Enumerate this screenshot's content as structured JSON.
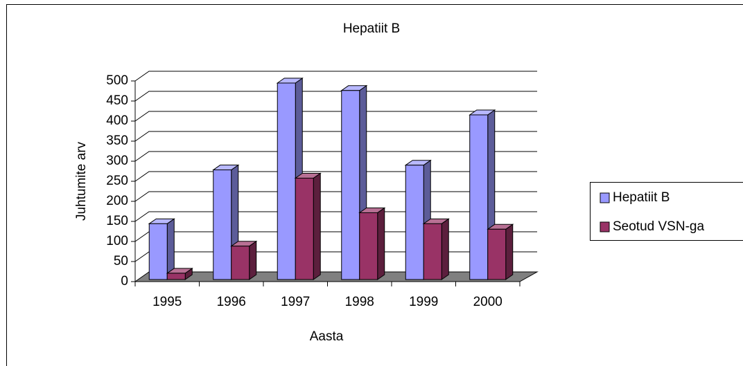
{
  "chart_data": {
    "type": "bar3d",
    "title": "Hepatiit B",
    "x_label": "Aasta",
    "y_label": "Juhtumite arv",
    "categories": [
      "1995",
      "1996",
      "1997",
      "1998",
      "1999",
      "2000"
    ],
    "series": [
      {
        "name": "Hepatiit B",
        "color": "#9999ff",
        "values": [
          142,
          279,
          500,
          481,
          291,
          419
        ]
      },
      {
        "name": "Seotud VSN-ga",
        "color": "#993366",
        "values": [
          16,
          85,
          258,
          170,
          142,
          128
        ]
      }
    ],
    "ylim": [
      0,
      500
    ],
    "yticks": [
      0,
      50,
      100,
      150,
      200,
      250,
      300,
      350,
      400,
      450,
      500
    ],
    "grid": true,
    "legend": "right"
  }
}
